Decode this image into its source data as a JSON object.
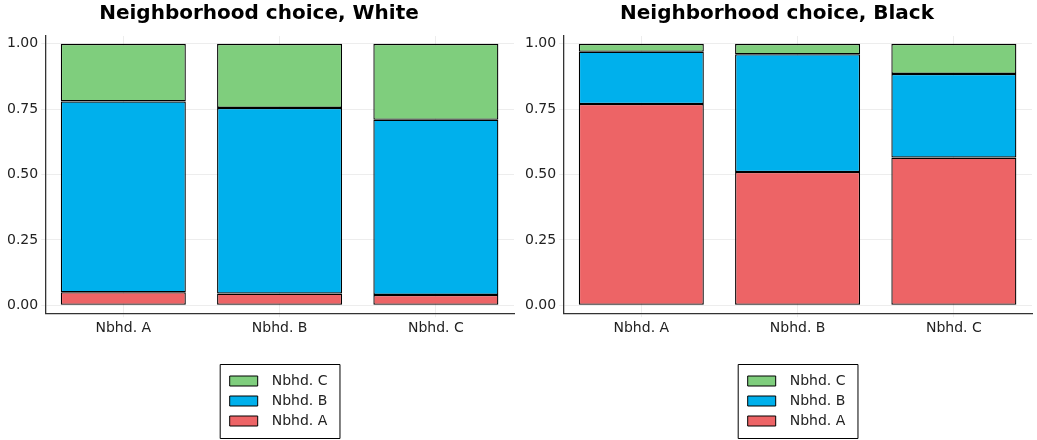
{
  "chart_data": [
    {
      "type": "bar",
      "title": "Neighborhood choice, White",
      "categories": [
        "Nbhd. A",
        "Nbhd. B",
        "Nbhd. C"
      ],
      "stacked": true,
      "ylim": [
        -0.03,
        1.03
      ],
      "yticks": [
        {
          "value": 0,
          "label": "0.00"
        },
        {
          "value": 0.25,
          "label": "0.25"
        },
        {
          "value": 0.5,
          "label": "0.50"
        },
        {
          "value": 0.75,
          "label": "0.75"
        },
        {
          "value": 1,
          "label": "1.00"
        }
      ],
      "grid": true,
      "legend": "bottom",
      "series": [
        {
          "name": "Nbhd. A",
          "color": "#ed6466",
          "values": [
            0.05,
            0.045,
            0.04
          ]
        },
        {
          "name": "Nbhd. B",
          "color": "#00b0ec",
          "values": [
            0.73,
            0.71,
            0.67
          ]
        },
        {
          "name": "Nbhd. C",
          "color": "#7fce7d",
          "values": [
            0.22,
            0.245,
            0.29
          ]
        }
      ]
    },
    {
      "type": "bar",
      "title": "Neighborhood choice, Black",
      "categories": [
        "Nbhd. A",
        "Nbhd. B",
        "Nbhd. C"
      ],
      "stacked": true,
      "ylim": [
        -0.03,
        1.03
      ],
      "yticks": [
        {
          "value": 0,
          "label": "0.00"
        },
        {
          "value": 0.25,
          "label": "0.25"
        },
        {
          "value": 0.5,
          "label": "0.50"
        },
        {
          "value": 0.75,
          "label": "0.75"
        },
        {
          "value": 1,
          "label": "1.00"
        }
      ],
      "grid": true,
      "legend": "bottom",
      "series": [
        {
          "name": "Nbhd. A",
          "color": "#ed6466",
          "values": [
            0.77,
            0.51,
            0.565
          ]
        },
        {
          "name": "Nbhd. B",
          "color": "#00b0ec",
          "values": [
            0.2,
            0.45,
            0.32
          ]
        },
        {
          "name": "Nbhd. C",
          "color": "#7fce7d",
          "values": [
            0.03,
            0.04,
            0.115
          ]
        }
      ]
    }
  ]
}
